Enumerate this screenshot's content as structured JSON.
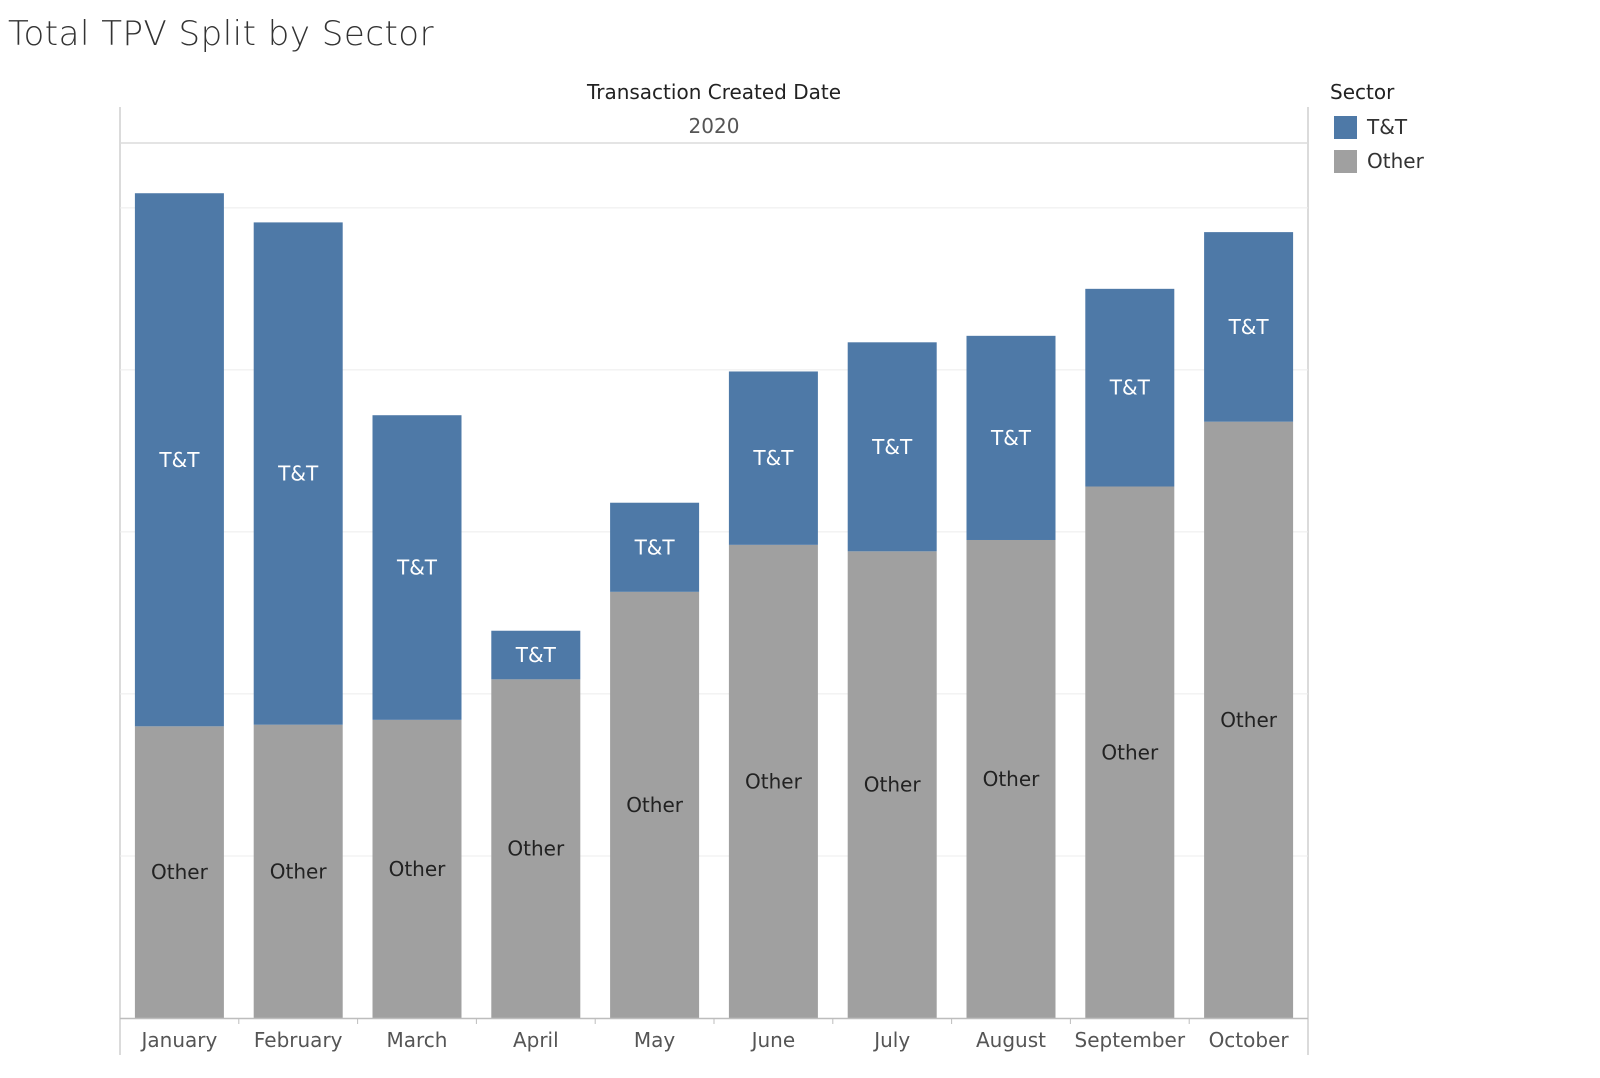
{
  "title": "Total TPV Split by Sector",
  "header": {
    "field": "Transaction Created Date",
    "year": "2020"
  },
  "legend": {
    "title": "Sector",
    "items": [
      {
        "label": "T&T",
        "color": "#4e79a7"
      },
      {
        "label": "Other",
        "color": "#a0a0a0"
      }
    ]
  },
  "chart_data": {
    "type": "bar",
    "stacked": true,
    "categories": [
      "January",
      "February",
      "March",
      "April",
      "May",
      "June",
      "July",
      "August",
      "September",
      "October"
    ],
    "series": [
      {
        "name": "Other",
        "color": "#a0a0a0",
        "label_color": "#222222",
        "values": [
          1.8,
          1.81,
          1.84,
          2.09,
          2.63,
          2.92,
          2.88,
          2.95,
          3.28,
          3.68
        ]
      },
      {
        "name": "T&T",
        "color": "#4e79a7",
        "label_color": "#ffffff",
        "values": [
          3.29,
          3.1,
          1.88,
          0.3,
          0.55,
          1.07,
          1.29,
          1.26,
          1.22,
          1.17
        ]
      }
    ],
    "ylim": [
      0,
      5.4
    ],
    "gridlines": [
      1,
      2,
      3,
      4,
      5
    ],
    "grid": true,
    "y_axis_labels_shown": false,
    "legend_position": "top-right"
  }
}
